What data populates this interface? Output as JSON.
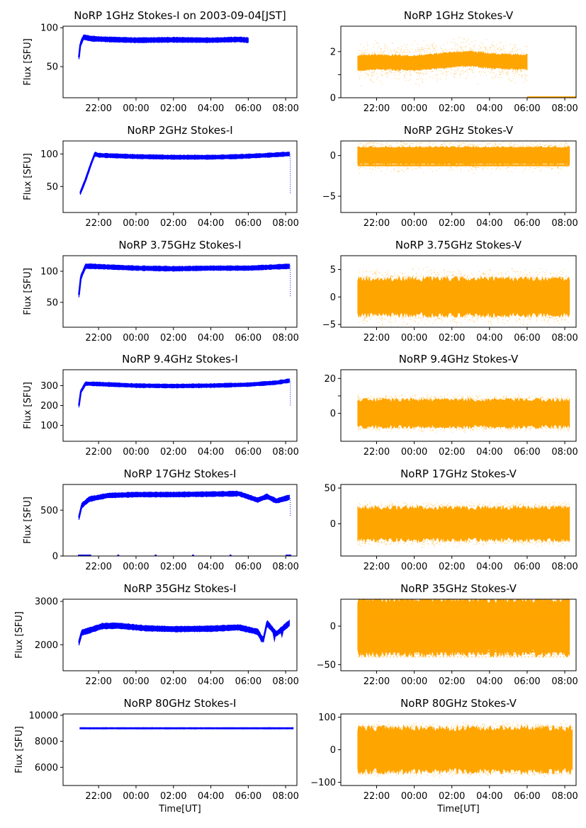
{
  "figure": {
    "xlabel": "Time[UT]",
    "colors": {
      "stokes_i": "#0000ff",
      "stokes_v": "#ffa500"
    }
  },
  "time_ticks": [
    "22:00",
    "00:00",
    "02:00",
    "04:00",
    "06:00",
    "08:00"
  ],
  "chart_data": [
    {
      "type": "line",
      "title": "NoRP 1GHz Stokes-I on 2003-09-04[JST]",
      "ylabel": "Flux [SFU]",
      "xlabel": "",
      "series": [
        {
          "name": "",
          "color": "#0000ff",
          "trace": [
            [
              20.95,
              62
            ],
            [
              21.02,
              78
            ],
            [
              21.1,
              83
            ],
            [
              21.2,
              88
            ],
            [
              21.6,
              86
            ],
            [
              22.5,
              85
            ],
            [
              24.0,
              84
            ],
            [
              26.0,
              84.5
            ],
            [
              28.0,
              84
            ],
            [
              29.5,
              85
            ],
            [
              30.0,
              84
            ]
          ],
          "band": 3
        }
      ],
      "x_range": [
        "2003-09-03T20:57:00",
        "2003-09-04T06:00:00"
      ],
      "xlim": [
        20.1,
        32.6
      ],
      "ylim": [
        10,
        102
      ],
      "yticks": [
        50,
        100
      ],
      "ytick_labels": [
        "50",
        "100"
      ]
    },
    {
      "type": "scatter",
      "title": "NoRP 1GHz Stokes-V",
      "ylabel": "",
      "xlabel": "",
      "series": [
        {
          "name": "",
          "color": "#ffa500",
          "trace": [
            [
              21.0,
              1.5
            ],
            [
              22.0,
              1.55
            ],
            [
              24.0,
              1.5
            ],
            [
              26.0,
              1.65
            ],
            [
              27.0,
              1.7
            ],
            [
              28.0,
              1.6
            ],
            [
              29.5,
              1.55
            ],
            [
              30.0,
              1.55
            ]
          ],
          "band": 0.3,
          "scatter": 0.8,
          "baseline": [
            [
              30.0,
              32.6,
              0.0
            ]
          ]
        }
      ],
      "x_range": [
        "2003-09-03T20:57:00",
        "2003-09-04T06:00:00"
      ],
      "xlim": [
        20.1,
        32.6
      ],
      "ylim": [
        0,
        3.1
      ],
      "yticks": [
        0,
        1,
        2
      ],
      "ytick_labels": [
        "0",
        "",
        "2"
      ]
    },
    {
      "type": "line",
      "title": "NoRP 2GHz Stokes-I",
      "ylabel": "Flux [SFU]",
      "xlabel": "",
      "series": [
        {
          "name": "",
          "color": "#0000ff",
          "trace": [
            [
              21.02,
              40
            ],
            [
              21.3,
              60
            ],
            [
              21.6,
              85
            ],
            [
              21.8,
              100
            ],
            [
              22.0,
              98
            ],
            [
              24.0,
              96
            ],
            [
              26.0,
              95
            ],
            [
              28.0,
              95
            ],
            [
              29.5,
              96
            ],
            [
              31.0,
              98
            ],
            [
              32.2,
              100
            ]
          ],
          "band": 3,
          "spike": {
            "x": 32.25,
            "lo": 40,
            "hi": 100
          }
        }
      ],
      "x_range": [
        "2003-09-03T20:57:00",
        "2003-09-04T08:15:00"
      ],
      "xlim": [
        20.1,
        32.6
      ],
      "ylim": [
        10,
        120
      ],
      "yticks": [
        50,
        100
      ],
      "ytick_labels": [
        "50",
        "100"
      ]
    },
    {
      "type": "scatter",
      "title": "NoRP 2GHz Stokes-V",
      "ylabel": "",
      "xlabel": "",
      "series": [
        {
          "name": "",
          "color": "#ffa500",
          "trace": [
            [
              21.0,
              0.0
            ],
            [
              32.25,
              0.0
            ]
          ],
          "band": 1.0,
          "scatter": 1.3,
          "levels": [
            -1.2,
            -0.9,
            -0.6,
            -0.3,
            0.0,
            0.3,
            0.6,
            0.9
          ]
        }
      ],
      "x_range": [
        "2003-09-03T20:57:00",
        "2003-09-04T08:15:00"
      ],
      "xlim": [
        20.1,
        32.6
      ],
      "ylim": [
        -7,
        1.8
      ],
      "yticks": [
        -5,
        0
      ],
      "ytick_labels": [
        "−5",
        "0"
      ]
    },
    {
      "type": "line",
      "title": "NoRP 3.75GHz Stokes-I",
      "ylabel": "Flux [SFU]",
      "xlabel": "",
      "series": [
        {
          "name": "",
          "color": "#0000ff",
          "trace": [
            [
              20.95,
              62
            ],
            [
              21.05,
              90
            ],
            [
              21.3,
              108
            ],
            [
              21.6,
              108
            ],
            [
              24.0,
              105
            ],
            [
              26.0,
              104
            ],
            [
              28.0,
              105
            ],
            [
              30.0,
              105
            ],
            [
              32.2,
              108
            ]
          ],
          "band": 3.5,
          "spike": {
            "x": 32.25,
            "lo": 60,
            "hi": 110
          }
        }
      ],
      "x_range": [
        "2003-09-03T20:57:00",
        "2003-09-04T08:15:00"
      ],
      "xlim": [
        20.1,
        32.6
      ],
      "ylim": [
        10,
        125
      ],
      "yticks": [
        50,
        100
      ],
      "ytick_labels": [
        "50",
        "100"
      ]
    },
    {
      "type": "scatter",
      "title": "NoRP 3.75GHz Stokes-V",
      "ylabel": "",
      "xlabel": "",
      "series": [
        {
          "name": "",
          "color": "#ffa500",
          "trace": [
            [
              21.0,
              0.0
            ],
            [
              32.25,
              0.0
            ]
          ],
          "band": 3.2,
          "scatter": 2.5,
          "levels": [
            -2.0,
            -1.0,
            0.0,
            1.0,
            2.0
          ]
        }
      ],
      "x_range": [
        "2003-09-03T20:57:00",
        "2003-09-04T08:15:00"
      ],
      "xlim": [
        20.1,
        32.6
      ],
      "ylim": [
        -5.5,
        7.5
      ],
      "yticks": [
        -5,
        0,
        5
      ],
      "ytick_labels": [
        "−5",
        "0",
        "5"
      ]
    },
    {
      "type": "line",
      "title": "NoRP 9.4GHz Stokes-I",
      "ylabel": "Flux [SFU]",
      "xlabel": "",
      "series": [
        {
          "name": "",
          "color": "#0000ff",
          "trace": [
            [
              20.95,
              200
            ],
            [
              21.05,
              270
            ],
            [
              21.3,
              310
            ],
            [
              22.0,
              308
            ],
            [
              24.0,
              300
            ],
            [
              26.0,
              298
            ],
            [
              28.0,
              300
            ],
            [
              30.0,
              305
            ],
            [
              31.5,
              315
            ],
            [
              32.2,
              325
            ]
          ],
          "band": 9,
          "spike": {
            "x": 32.25,
            "lo": 200,
            "hi": 330
          }
        }
      ],
      "x_range": [
        "2003-09-03T20:57:00",
        "2003-09-04T08:15:00"
      ],
      "xlim": [
        20.1,
        32.6
      ],
      "ylim": [
        20,
        380
      ],
      "yticks": [
        100,
        200,
        300
      ],
      "ytick_labels": [
        "100",
        "200",
        "300"
      ]
    },
    {
      "type": "scatter",
      "title": "NoRP 9.4GHz Stokes-V",
      "ylabel": "",
      "xlabel": "",
      "series": [
        {
          "name": "",
          "color": "#ffa500",
          "trace": [
            [
              21.0,
              0.0
            ],
            [
              32.25,
              0.0
            ]
          ],
          "band": 7.5,
          "scatter": 4.0
        }
      ],
      "x_range": [
        "2003-09-03T20:57:00",
        "2003-09-04T08:15:00"
      ],
      "xlim": [
        20.1,
        32.6
      ],
      "ylim": [
        -16,
        25
      ],
      "yticks": [
        0,
        10,
        20
      ],
      "ytick_labels": [
        "0",
        "",
        "20"
      ]
    },
    {
      "type": "line",
      "title": "NoRP 17GHz Stokes-I",
      "ylabel": "Flux [SFU]",
      "xlabel": "",
      "series": [
        {
          "name": "",
          "color": "#0000ff",
          "trace": [
            [
              20.95,
              420
            ],
            [
              21.1,
              550
            ],
            [
              21.5,
              620
            ],
            [
              22.5,
              660
            ],
            [
              24.0,
              670
            ],
            [
              26.0,
              670
            ],
            [
              28.0,
              675
            ],
            [
              29.5,
              680
            ],
            [
              30.5,
              610
            ],
            [
              31.0,
              650
            ],
            [
              31.5,
              600
            ],
            [
              32.2,
              640
            ]
          ],
          "band": 25,
          "spike": {
            "x": 32.25,
            "lo": 440,
            "hi": 650
          },
          "baseline": [
            [
              20.9,
              21.6,
              0
            ],
            [
              23.0,
              23.1,
              0
            ],
            [
              25.0,
              25.1,
              0
            ],
            [
              27.0,
              27.1,
              0
            ],
            [
              29.0,
              29.1,
              0
            ],
            [
              32.0,
              32.3,
              0
            ]
          ]
        }
      ],
      "x_range": [
        "2003-09-03T20:57:00",
        "2003-09-04T08:15:00"
      ],
      "xlim": [
        20.1,
        32.6
      ],
      "ylim": [
        0,
        780
      ],
      "yticks": [
        0,
        500
      ],
      "ytick_labels": [
        "0",
        "500"
      ]
    },
    {
      "type": "scatter",
      "title": "NoRP 17GHz Stokes-V",
      "ylabel": "",
      "xlabel": "",
      "series": [
        {
          "name": "",
          "color": "#ffa500",
          "trace": [
            [
              21.0,
              0.0
            ],
            [
              32.25,
              0.0
            ]
          ],
          "band": 22,
          "scatter": 12
        }
      ],
      "x_range": [
        "2003-09-03T20:57:00",
        "2003-09-04T08:15:00"
      ],
      "xlim": [
        20.1,
        32.6
      ],
      "ylim": [
        -45,
        55
      ],
      "yticks": [
        0,
        50
      ],
      "ytick_labels": [
        "0",
        "50"
      ]
    },
    {
      "type": "line",
      "title": "NoRP 35GHz Stokes-I",
      "ylabel": "Flux [SFU]",
      "xlabel": "",
      "series": [
        {
          "name": "",
          "color": "#0000ff",
          "trace": [
            [
              20.95,
              2050
            ],
            [
              21.1,
              2280
            ],
            [
              21.5,
              2330
            ],
            [
              22.2,
              2430
            ],
            [
              23.0,
              2440
            ],
            [
              24.5,
              2380
            ],
            [
              26.0,
              2360
            ],
            [
              28.0,
              2370
            ],
            [
              29.5,
              2400
            ],
            [
              30.5,
              2300
            ],
            [
              30.8,
              2100
            ],
            [
              31.0,
              2500
            ],
            [
              31.5,
              2250
            ],
            [
              32.2,
              2500
            ]
          ],
          "band": 60,
          "dips": [
            [
              30.7,
              2050
            ],
            [
              31.4,
              2050
            ],
            [
              31.8,
              2150
            ]
          ]
        }
      ],
      "x_range": [
        "2003-09-03T20:57:00",
        "2003-09-04T08:15:00"
      ],
      "xlim": [
        20.1,
        32.6
      ],
      "ylim": [
        1400,
        3050
      ],
      "yticks": [
        2000,
        3000
      ],
      "ytick_labels": [
        "2000",
        "3000"
      ]
    },
    {
      "type": "scatter",
      "title": "NoRP 35GHz Stokes-V",
      "ylabel": "",
      "xlabel": "",
      "series": [
        {
          "name": "",
          "color": "#ffa500",
          "trace": [
            [
              21.0,
              0.0
            ],
            [
              32.25,
              0.0
            ]
          ],
          "band": 35,
          "scatter": 5,
          "levels": [
            -33,
            -26,
            -20,
            -13,
            -6,
            0,
            6,
            11,
            19
          ],
          "faint": [
            -40,
            24
          ]
        }
      ],
      "x_range": [
        "2003-09-03T20:57:00",
        "2003-09-04T08:15:00"
      ],
      "xlim": [
        20.1,
        32.6
      ],
      "ylim": [
        -58,
        35
      ],
      "yticks": [
        -50,
        0
      ],
      "ytick_labels": [
        "−50",
        "0"
      ]
    },
    {
      "type": "line",
      "title": "NoRP 80GHz Stokes-I",
      "ylabel": "Flux [SFU]",
      "xlabel": "Time[UT]",
      "series": [
        {
          "name": "",
          "color": "#0000ff",
          "trace": [
            [
              21.0,
              9000
            ],
            [
              32.4,
              9000
            ]
          ],
          "band": 50
        }
      ],
      "x_range": [
        "2003-09-03T20:57:00",
        "2003-09-04T08:24:00"
      ],
      "xlim": [
        20.1,
        32.6
      ],
      "ylim": [
        4600,
        10100
      ],
      "yticks": [
        6000,
        8000,
        10000
      ],
      "ytick_labels": [
        "6000",
        "8000",
        "10000"
      ]
    },
    {
      "type": "scatter",
      "title": "NoRP 80GHz Stokes-V",
      "ylabel": "",
      "xlabel": "Time[UT]",
      "series": [
        {
          "name": "",
          "color": "#ffa500",
          "trace": [
            [
              21.0,
              0.0
            ],
            [
              32.4,
              0.0
            ]
          ],
          "band": 65,
          "scatter": 25
        }
      ],
      "x_range": [
        "2003-09-03T20:57:00",
        "2003-09-04T08:24:00"
      ],
      "xlim": [
        20.1,
        32.6
      ],
      "ylim": [
        -110,
        110
      ],
      "yticks": [
        -100,
        0,
        100
      ],
      "ytick_labels": [
        "−100",
        "0",
        "100"
      ]
    }
  ]
}
